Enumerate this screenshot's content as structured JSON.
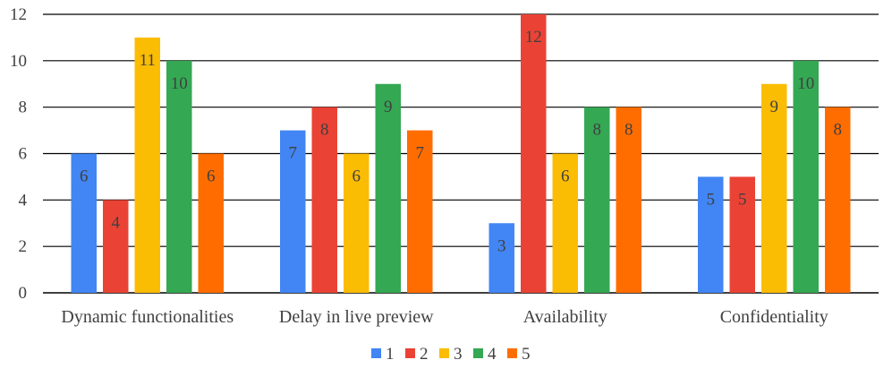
{
  "chart_data": {
    "type": "bar",
    "title": "",
    "xlabel": "",
    "ylabel": "",
    "categories": [
      "Dynamic functionalities",
      "Delay in live preview",
      "Availability",
      "Confidentiality"
    ],
    "series": [
      {
        "name": "1",
        "color": "#4285F4",
        "values": [
          6,
          7,
          3,
          5
        ]
      },
      {
        "name": "2",
        "color": "#EA4335",
        "values": [
          4,
          8,
          12,
          5
        ]
      },
      {
        "name": "3",
        "color": "#FBBC04",
        "values": [
          11,
          6,
          6,
          9
        ]
      },
      {
        "name": "4",
        "color": "#34A853",
        "values": [
          10,
          9,
          8,
          10
        ]
      },
      {
        "name": "5",
        "color": "#FF6D01",
        "values": [
          6,
          7,
          8,
          8
        ]
      }
    ],
    "ylim": [
      0,
      12
    ],
    "yticks": [
      0,
      2,
      4,
      6,
      8,
      10,
      12
    ],
    "grid": true,
    "legend": "bottom"
  }
}
